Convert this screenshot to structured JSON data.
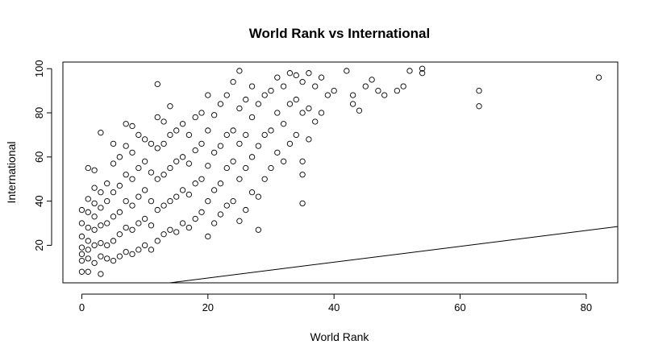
{
  "chart_data": {
    "type": "scatter",
    "title": "World Rank vs International",
    "xlabel": "World Rank",
    "ylabel": "International",
    "xlim": [
      -3,
      85
    ],
    "ylim": [
      3,
      103
    ],
    "x_ticks": [
      0,
      20,
      40,
      60,
      80
    ],
    "y_ticks": [
      20,
      40,
      60,
      80,
      100
    ],
    "x_tick_labels": [
      "0",
      "20",
      "40",
      "60",
      "80"
    ],
    "y_tick_labels": [
      "20",
      "40",
      "60",
      "80",
      "100"
    ],
    "grid": false,
    "marker": "open-circle",
    "reference_line": {
      "x": [
        0,
        85
      ],
      "y": [
        -2,
        28.5
      ]
    },
    "series": [
      {
        "points": [
          [
            0,
            8
          ],
          [
            0,
            13
          ],
          [
            0,
            16
          ],
          [
            0,
            19
          ],
          [
            0,
            24
          ],
          [
            0,
            30
          ],
          [
            0,
            36
          ],
          [
            1,
            8
          ],
          [
            1,
            14
          ],
          [
            1,
            18
          ],
          [
            1,
            22
          ],
          [
            1,
            28
          ],
          [
            1,
            35
          ],
          [
            1,
            41
          ],
          [
            1,
            55
          ],
          [
            2,
            12
          ],
          [
            2,
            20
          ],
          [
            2,
            27
          ],
          [
            2,
            33
          ],
          [
            2,
            39
          ],
          [
            2,
            46
          ],
          [
            2,
            54
          ],
          [
            3,
            7
          ],
          [
            3,
            15
          ],
          [
            3,
            21
          ],
          [
            3,
            29
          ],
          [
            3,
            37
          ],
          [
            3,
            44
          ],
          [
            3,
            71
          ],
          [
            4,
            14
          ],
          [
            4,
            20
          ],
          [
            4,
            30
          ],
          [
            4,
            40
          ],
          [
            4,
            48
          ],
          [
            5,
            13
          ],
          [
            5,
            22
          ],
          [
            5,
            33
          ],
          [
            5,
            44
          ],
          [
            5,
            57
          ],
          [
            5,
            66
          ],
          [
            6,
            15
          ],
          [
            6,
            25
          ],
          [
            6,
            35
          ],
          [
            6,
            47
          ],
          [
            6,
            60
          ],
          [
            7,
            17
          ],
          [
            7,
            28
          ],
          [
            7,
            40
          ],
          [
            7,
            52
          ],
          [
            7,
            65
          ],
          [
            7,
            75
          ],
          [
            8,
            16
          ],
          [
            8,
            27
          ],
          [
            8,
            38
          ],
          [
            8,
            50
          ],
          [
            8,
            62
          ],
          [
            8,
            74
          ],
          [
            9,
            18
          ],
          [
            9,
            30
          ],
          [
            9,
            42
          ],
          [
            9,
            55
          ],
          [
            9,
            70
          ],
          [
            10,
            20
          ],
          [
            10,
            32
          ],
          [
            10,
            45
          ],
          [
            10,
            58
          ],
          [
            10,
            68
          ],
          [
            11,
            18
          ],
          [
            11,
            29
          ],
          [
            11,
            40
          ],
          [
            11,
            53
          ],
          [
            11,
            66
          ],
          [
            12,
            22
          ],
          [
            12,
            36
          ],
          [
            12,
            50
          ],
          [
            12,
            64
          ],
          [
            12,
            78
          ],
          [
            12,
            93
          ],
          [
            13,
            25
          ],
          [
            13,
            38
          ],
          [
            13,
            52
          ],
          [
            13,
            66
          ],
          [
            13,
            76
          ],
          [
            14,
            27
          ],
          [
            14,
            40
          ],
          [
            14,
            55
          ],
          [
            14,
            70
          ],
          [
            14,
            83
          ],
          [
            15,
            26
          ],
          [
            15,
            42
          ],
          [
            15,
            58
          ],
          [
            15,
            72
          ],
          [
            16,
            30
          ],
          [
            16,
            45
          ],
          [
            16,
            60
          ],
          [
            16,
            75
          ],
          [
            17,
            28
          ],
          [
            17,
            43
          ],
          [
            17,
            57
          ],
          [
            17,
            70
          ],
          [
            18,
            32
          ],
          [
            18,
            48
          ],
          [
            18,
            63
          ],
          [
            18,
            78
          ],
          [
            19,
            35
          ],
          [
            19,
            50
          ],
          [
            19,
            66
          ],
          [
            19,
            80
          ],
          [
            20,
            24
          ],
          [
            20,
            40
          ],
          [
            20,
            56
          ],
          [
            20,
            72
          ],
          [
            20,
            88
          ],
          [
            21,
            30
          ],
          [
            21,
            45
          ],
          [
            21,
            62
          ],
          [
            21,
            79
          ],
          [
            22,
            34
          ],
          [
            22,
            48
          ],
          [
            22,
            65
          ],
          [
            22,
            84
          ],
          [
            23,
            38
          ],
          [
            23,
            55
          ],
          [
            23,
            70
          ],
          [
            23,
            88
          ],
          [
            24,
            40
          ],
          [
            24,
            58
          ],
          [
            24,
            72
          ],
          [
            24,
            94
          ],
          [
            25,
            31
          ],
          [
            25,
            50
          ],
          [
            25,
            66
          ],
          [
            25,
            82
          ],
          [
            25,
            99
          ],
          [
            26,
            36
          ],
          [
            26,
            55
          ],
          [
            26,
            70
          ],
          [
            26,
            86
          ],
          [
            27,
            44
          ],
          [
            27,
            60
          ],
          [
            27,
            78
          ],
          [
            27,
            92
          ],
          [
            28,
            27
          ],
          [
            28,
            42
          ],
          [
            28,
            65
          ],
          [
            28,
            84
          ],
          [
            29,
            50
          ],
          [
            29,
            70
          ],
          [
            29,
            88
          ],
          [
            30,
            55
          ],
          [
            30,
            72
          ],
          [
            30,
            90
          ],
          [
            31,
            62
          ],
          [
            31,
            80
          ],
          [
            31,
            96
          ],
          [
            32,
            58
          ],
          [
            32,
            75
          ],
          [
            32,
            92
          ],
          [
            33,
            66
          ],
          [
            33,
            84
          ],
          [
            33,
            98
          ],
          [
            34,
            70
          ],
          [
            34,
            86
          ],
          [
            34,
            97
          ],
          [
            35,
            39
          ],
          [
            35,
            52
          ],
          [
            35,
            58
          ],
          [
            35,
            80
          ],
          [
            35,
            94
          ],
          [
            36,
            68
          ],
          [
            36,
            82
          ],
          [
            36,
            98
          ],
          [
            37,
            76
          ],
          [
            37,
            92
          ],
          [
            38,
            80
          ],
          [
            38,
            96
          ],
          [
            39,
            88
          ],
          [
            40,
            90
          ],
          [
            42,
            99
          ],
          [
            43,
            84
          ],
          [
            43,
            88
          ],
          [
            44,
            81
          ],
          [
            45,
            92
          ],
          [
            46,
            95
          ],
          [
            47,
            90
          ],
          [
            48,
            88
          ],
          [
            50,
            90
          ],
          [
            51,
            92
          ],
          [
            52,
            99
          ],
          [
            54,
            98
          ],
          [
            54,
            100
          ],
          [
            63,
            90
          ],
          [
            63,
            83
          ],
          [
            82,
            96
          ]
        ]
      }
    ]
  }
}
